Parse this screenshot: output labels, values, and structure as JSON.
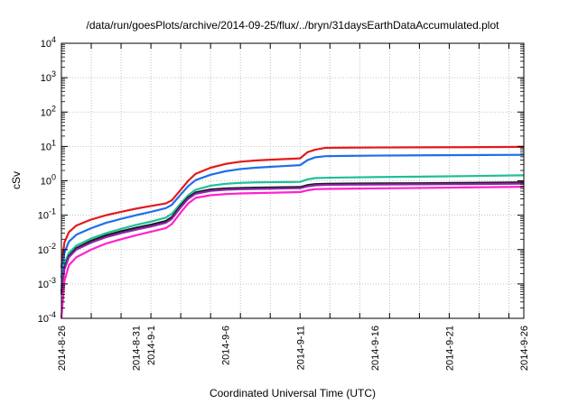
{
  "chart_data": {
    "type": "line",
    "title": "/data/run/goesPlots/archive/2014-09-25/flux/../bryn/31daysEarthDataAccumulated.plot",
    "xlabel": "Coordinated Universal Time (UTC)",
    "ylabel": "cSv",
    "y_scale": "log",
    "ylim_exp": [
      -4,
      4
    ],
    "xlim": [
      "2014-08-26",
      "2014-09-26"
    ],
    "x_ticks": [
      {
        "label": "2014-8-26",
        "day": 0
      },
      {
        "label": "2014-8-31",
        "day": 5
      },
      {
        "label": "2014-9-1",
        "day": 6
      },
      {
        "label": "2014-9-6",
        "day": 11
      },
      {
        "label": "2014-9-11",
        "day": 16
      },
      {
        "label": "2014-9-16",
        "day": 21
      },
      {
        "label": "2014-9-21",
        "day": 26
      },
      {
        "label": "2014-9-26",
        "day": 31
      }
    ],
    "y_ticks": [
      {
        "base": "10",
        "exp": "-4",
        "value": -4
      },
      {
        "base": "10",
        "exp": "-3",
        "value": -3
      },
      {
        "base": "10",
        "exp": "-2",
        "value": -2
      },
      {
        "base": "10",
        "exp": "-1",
        "value": -1
      },
      {
        "base": "10",
        "exp": "0",
        "value": 0
      },
      {
        "base": "10",
        "exp": "1",
        "value": 1
      },
      {
        "base": "10",
        "exp": "2",
        "value": 2
      },
      {
        "base": "10",
        "exp": "3",
        "value": 3
      },
      {
        "base": "10",
        "exp": "4",
        "value": 4
      }
    ],
    "grid": true,
    "x": [
      0.0,
      0.2,
      0.5,
      1.0,
      2.0,
      3.0,
      4.0,
      5.0,
      6.0,
      7.0,
      7.4,
      8.0,
      8.5,
      9.0,
      10.0,
      11.0,
      12.0,
      13.0,
      14.0,
      15.0,
      16.0,
      16.5,
      17.0,
      17.7,
      19.0,
      21.0,
      24.0,
      27.0,
      31.0
    ],
    "series": [
      {
        "color": "#e31a1c",
        "values": [
          0.003,
          0.016,
          0.032,
          0.05,
          0.075,
          0.1,
          0.125,
          0.155,
          0.185,
          0.22,
          0.27,
          0.55,
          1.0,
          1.6,
          2.4,
          3.1,
          3.6,
          3.9,
          4.1,
          4.3,
          4.5,
          6.8,
          8.0,
          9.1,
          9.2,
          9.3,
          9.4,
          9.5,
          9.7
        ]
      },
      {
        "color": "#1f6fe8",
        "values": [
          0.0015,
          0.008,
          0.017,
          0.027,
          0.042,
          0.06,
          0.078,
          0.1,
          0.125,
          0.16,
          0.2,
          0.4,
          0.7,
          1.05,
          1.5,
          1.9,
          2.2,
          2.4,
          2.55,
          2.7,
          2.85,
          4.0,
          4.8,
          5.2,
          5.3,
          5.4,
          5.5,
          5.6,
          5.7
        ]
      },
      {
        "color": "#1fbf9a",
        "values": [
          0.0008,
          0.004,
          0.008,
          0.013,
          0.021,
          0.03,
          0.04,
          0.052,
          0.065,
          0.085,
          0.11,
          0.22,
          0.38,
          0.55,
          0.72,
          0.82,
          0.87,
          0.9,
          0.91,
          0.92,
          0.93,
          1.1,
          1.2,
          1.22,
          1.25,
          1.28,
          1.32,
          1.37,
          1.45
        ]
      },
      {
        "color": "#1a1a1a",
        "values": [
          0.0006,
          0.003,
          0.0065,
          0.011,
          0.018,
          0.026,
          0.034,
          0.043,
          0.053,
          0.068,
          0.088,
          0.19,
          0.33,
          0.46,
          0.56,
          0.6,
          0.62,
          0.63,
          0.64,
          0.65,
          0.66,
          0.75,
          0.8,
          0.82,
          0.83,
          0.84,
          0.85,
          0.87,
          0.9
        ]
      },
      {
        "color": "#8e24aa",
        "values": [
          0.0005,
          0.0027,
          0.006,
          0.01,
          0.016,
          0.023,
          0.03,
          0.038,
          0.047,
          0.06,
          0.078,
          0.17,
          0.3,
          0.42,
          0.51,
          0.55,
          0.57,
          0.58,
          0.59,
          0.6,
          0.61,
          0.69,
          0.74,
          0.76,
          0.77,
          0.78,
          0.79,
          0.8,
          0.83
        ]
      },
      {
        "color": "#ff22cc",
        "values": [
          0.0001,
          0.0012,
          0.0035,
          0.006,
          0.01,
          0.015,
          0.02,
          0.026,
          0.033,
          0.042,
          0.055,
          0.12,
          0.22,
          0.32,
          0.38,
          0.41,
          0.43,
          0.44,
          0.45,
          0.46,
          0.47,
          0.53,
          0.57,
          0.58,
          0.59,
          0.6,
          0.62,
          0.64,
          0.67
        ]
      }
    ]
  }
}
